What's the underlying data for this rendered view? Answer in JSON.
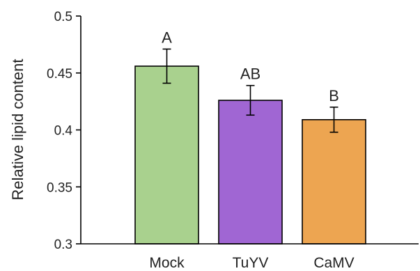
{
  "chart_data": {
    "type": "bar",
    "title": "",
    "xlabel": "",
    "ylabel": "Relative lipid content",
    "ylim": [
      0.3,
      0.5
    ],
    "yticks": [
      "0.3",
      "0.35",
      "0.4",
      "0.45",
      "0.5"
    ],
    "categories": [
      "Mock",
      "TuYV",
      "CaMV"
    ],
    "values": [
      0.456,
      0.426,
      0.409
    ],
    "errors": [
      0.015,
      0.013,
      0.011
    ],
    "significance": [
      "A",
      "AB",
      "B"
    ],
    "colors": [
      "#a9d18e",
      "#a066d3",
      "#eda551"
    ],
    "grid": false,
    "legend": "none"
  }
}
